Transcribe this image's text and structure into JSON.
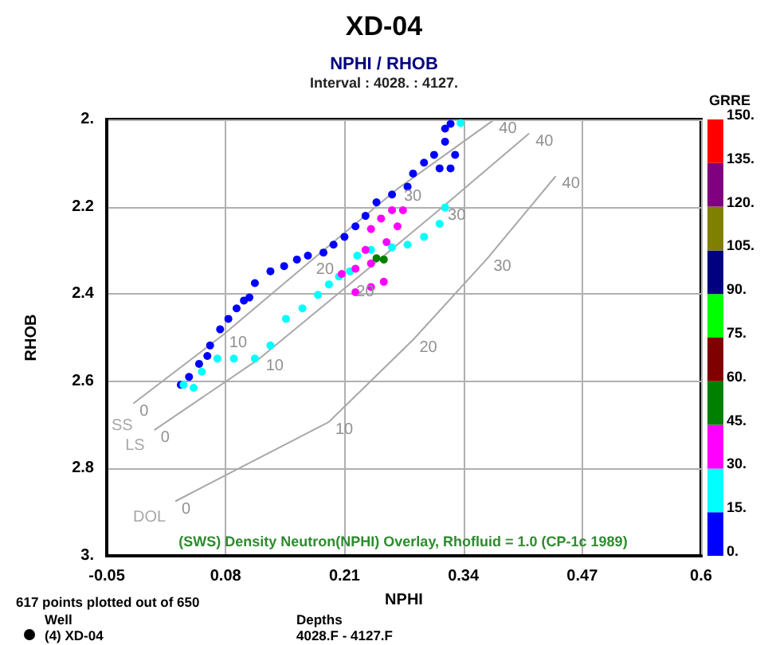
{
  "chart_data": {
    "type": "scatter",
    "title": "XD-04",
    "subtitle": "NPHI / RHOB",
    "xlabel": "NPHI",
    "ylabel": "RHOB",
    "clabel": "GRRE",
    "annotations": [
      "Interval : 4028. : 4127.",
      "(SWS) Density Neutron(NPHI) Overlay, Rhofluid = 1.0 (CP-1c 1989)",
      "617 points plotted out of 650",
      "Well",
      "Depths",
      "(4) XD-04",
      "4028.F - 4127.F",
      {
        "text": "0",
        "x": -0.021,
        "y": 2.651
      },
      {
        "text": "10",
        "x": 0.077,
        "y": 2.494
      },
      {
        "text": "20",
        "x": 0.172,
        "y": 2.326
      },
      {
        "text": "30",
        "x": 0.268,
        "y": 2.159
      },
      {
        "text": "40",
        "x": 0.372,
        "y": 2.003
      },
      {
        "text": "0",
        "x": 0.002,
        "y": 2.712
      },
      {
        "text": "10",
        "x": 0.117,
        "y": 2.548
      },
      {
        "text": "20",
        "x": 0.216,
        "y": 2.377
      },
      {
        "text": "30",
        "x": 0.316,
        "y": 2.203
      },
      {
        "text": "40",
        "x": 0.412,
        "y": 2.032
      },
      {
        "text": "0",
        "x": 0.025,
        "y": 2.875
      },
      {
        "text": "10",
        "x": 0.193,
        "y": 2.693
      },
      {
        "text": "20",
        "x": 0.285,
        "y": 2.505
      },
      {
        "text": "30",
        "x": 0.366,
        "y": 2.319
      },
      {
        "text": "40",
        "x": 0.441,
        "y": 2.13
      }
    ],
    "xlim": [
      -0.05,
      0.6
    ],
    "xticks": [
      -0.05,
      0.08,
      0.21,
      0.34,
      0.47,
      0.6
    ],
    "ylim": [
      3,
      2
    ],
    "yticks": [
      {
        "value": 2,
        "label": "2."
      },
      2.2,
      2.4,
      2.6,
      2.8,
      {
        "value": 3,
        "label": "3."
      }
    ],
    "clim": [
      0,
      150
    ],
    "cticks": [
      {
        "value": 0,
        "label": "0."
      },
      {
        "value": 15,
        "label": "15."
      },
      {
        "value": 30,
        "label": "30."
      },
      {
        "value": 45,
        "label": "45."
      },
      {
        "value": 60,
        "label": "60."
      },
      {
        "value": 75,
        "label": "75."
      },
      {
        "value": 90,
        "label": "90."
      },
      {
        "value": 105,
        "label": "105."
      },
      {
        "value": 120,
        "label": "120."
      },
      {
        "value": 135,
        "label": "135."
      },
      {
        "value": 150,
        "label": "150."
      }
    ],
    "colors": [
      "#0000ff",
      "#00ffff",
      "#ff00ff",
      "#008000",
      "#800000",
      "#00ff00",
      "#000080",
      "#808000",
      "#800080",
      "#ff0000"
    ],
    "grid": true,
    "marker": "circle",
    "series": [
      {
        "type": "line",
        "name": "SS",
        "color": "#a8a8a8",
        "marker": "none",
        "line_style": "solid",
        "x": [
          -0.021,
          0.077,
          0.172,
          0.268,
          0.372
        ],
        "values": [
          2.651,
          2.494,
          2.326,
          2.159,
          2.003
        ]
      },
      {
        "type": "line",
        "name": "LS",
        "color": "#a8a8a8",
        "marker": "none",
        "line_style": "solid",
        "x": [
          0.002,
          0.117,
          0.216,
          0.316,
          0.412
        ],
        "values": [
          2.712,
          2.548,
          2.377,
          2.203,
          2.032
        ]
      },
      {
        "type": "line",
        "name": "DOL",
        "color": "#a8a8a8",
        "marker": "none",
        "line_style": "solid",
        "x": [
          0.025,
          0.193,
          0.285,
          0.366,
          0.441
        ],
        "values": [
          2.875,
          2.693,
          2.505,
          2.319,
          2.13
        ]
      },
      {
        "color": "#0000ff",
        "x": [
          0.031,
          0.04,
          0.051,
          0.06,
          0.063,
          0.074,
          0.083,
          0.092,
          0.1,
          0.106,
          0.112,
          0.129,
          0.144,
          0.158,
          0.17,
          0.187,
          0.198,
          0.21,
          0.222,
          0.233,
          0.245,
          0.262,
          0.279,
          0.285,
          0.297,
          0.308,
          0.32,
          0.331,
          0.326,
          0.314,
          0.32,
          0.326
        ],
        "values": [
          2.608,
          2.59,
          2.56,
          2.542,
          2.518,
          2.481,
          2.457,
          2.433,
          2.415,
          2.408,
          2.375,
          2.348,
          2.336,
          2.321,
          2.312,
          2.305,
          2.287,
          2.269,
          2.245,
          2.221,
          2.19,
          2.172,
          2.154,
          2.124,
          2.099,
          2.081,
          2.051,
          2.081,
          2.112,
          2.112,
          2.021,
          2.01
        ]
      },
      {
        "color": "#00ffff",
        "x": [
          0.034,
          0.045,
          0.054,
          0.071,
          0.089,
          0.112,
          0.129,
          0.146,
          0.164,
          0.181,
          0.193,
          0.204,
          0.216,
          0.224,
          0.239,
          0.262,
          0.279,
          0.297,
          0.314,
          0.32,
          0.337
        ],
        "values": [
          2.608,
          2.615,
          2.578,
          2.548,
          2.548,
          2.548,
          2.518,
          2.457,
          2.433,
          2.402,
          2.378,
          2.36,
          2.348,
          2.312,
          2.299,
          2.293,
          2.287,
          2.269,
          2.239,
          2.202,
          2.008
        ]
      },
      {
        "color": "#ff00ff",
        "x": [
          0.207,
          0.222,
          0.239,
          0.233,
          0.239,
          0.25,
          0.262,
          0.274,
          0.268,
          0.256,
          0.222,
          0.239,
          0.253
        ],
        "values": [
          2.354,
          2.342,
          2.33,
          2.299,
          2.251,
          2.227,
          2.208,
          2.208,
          2.245,
          2.281,
          2.396,
          2.384,
          2.372
        ]
      },
      {
        "color": "#008000",
        "x": [
          0.245,
          0.253
        ],
        "values": [
          2.318,
          2.321
        ]
      }
    ]
  }
}
